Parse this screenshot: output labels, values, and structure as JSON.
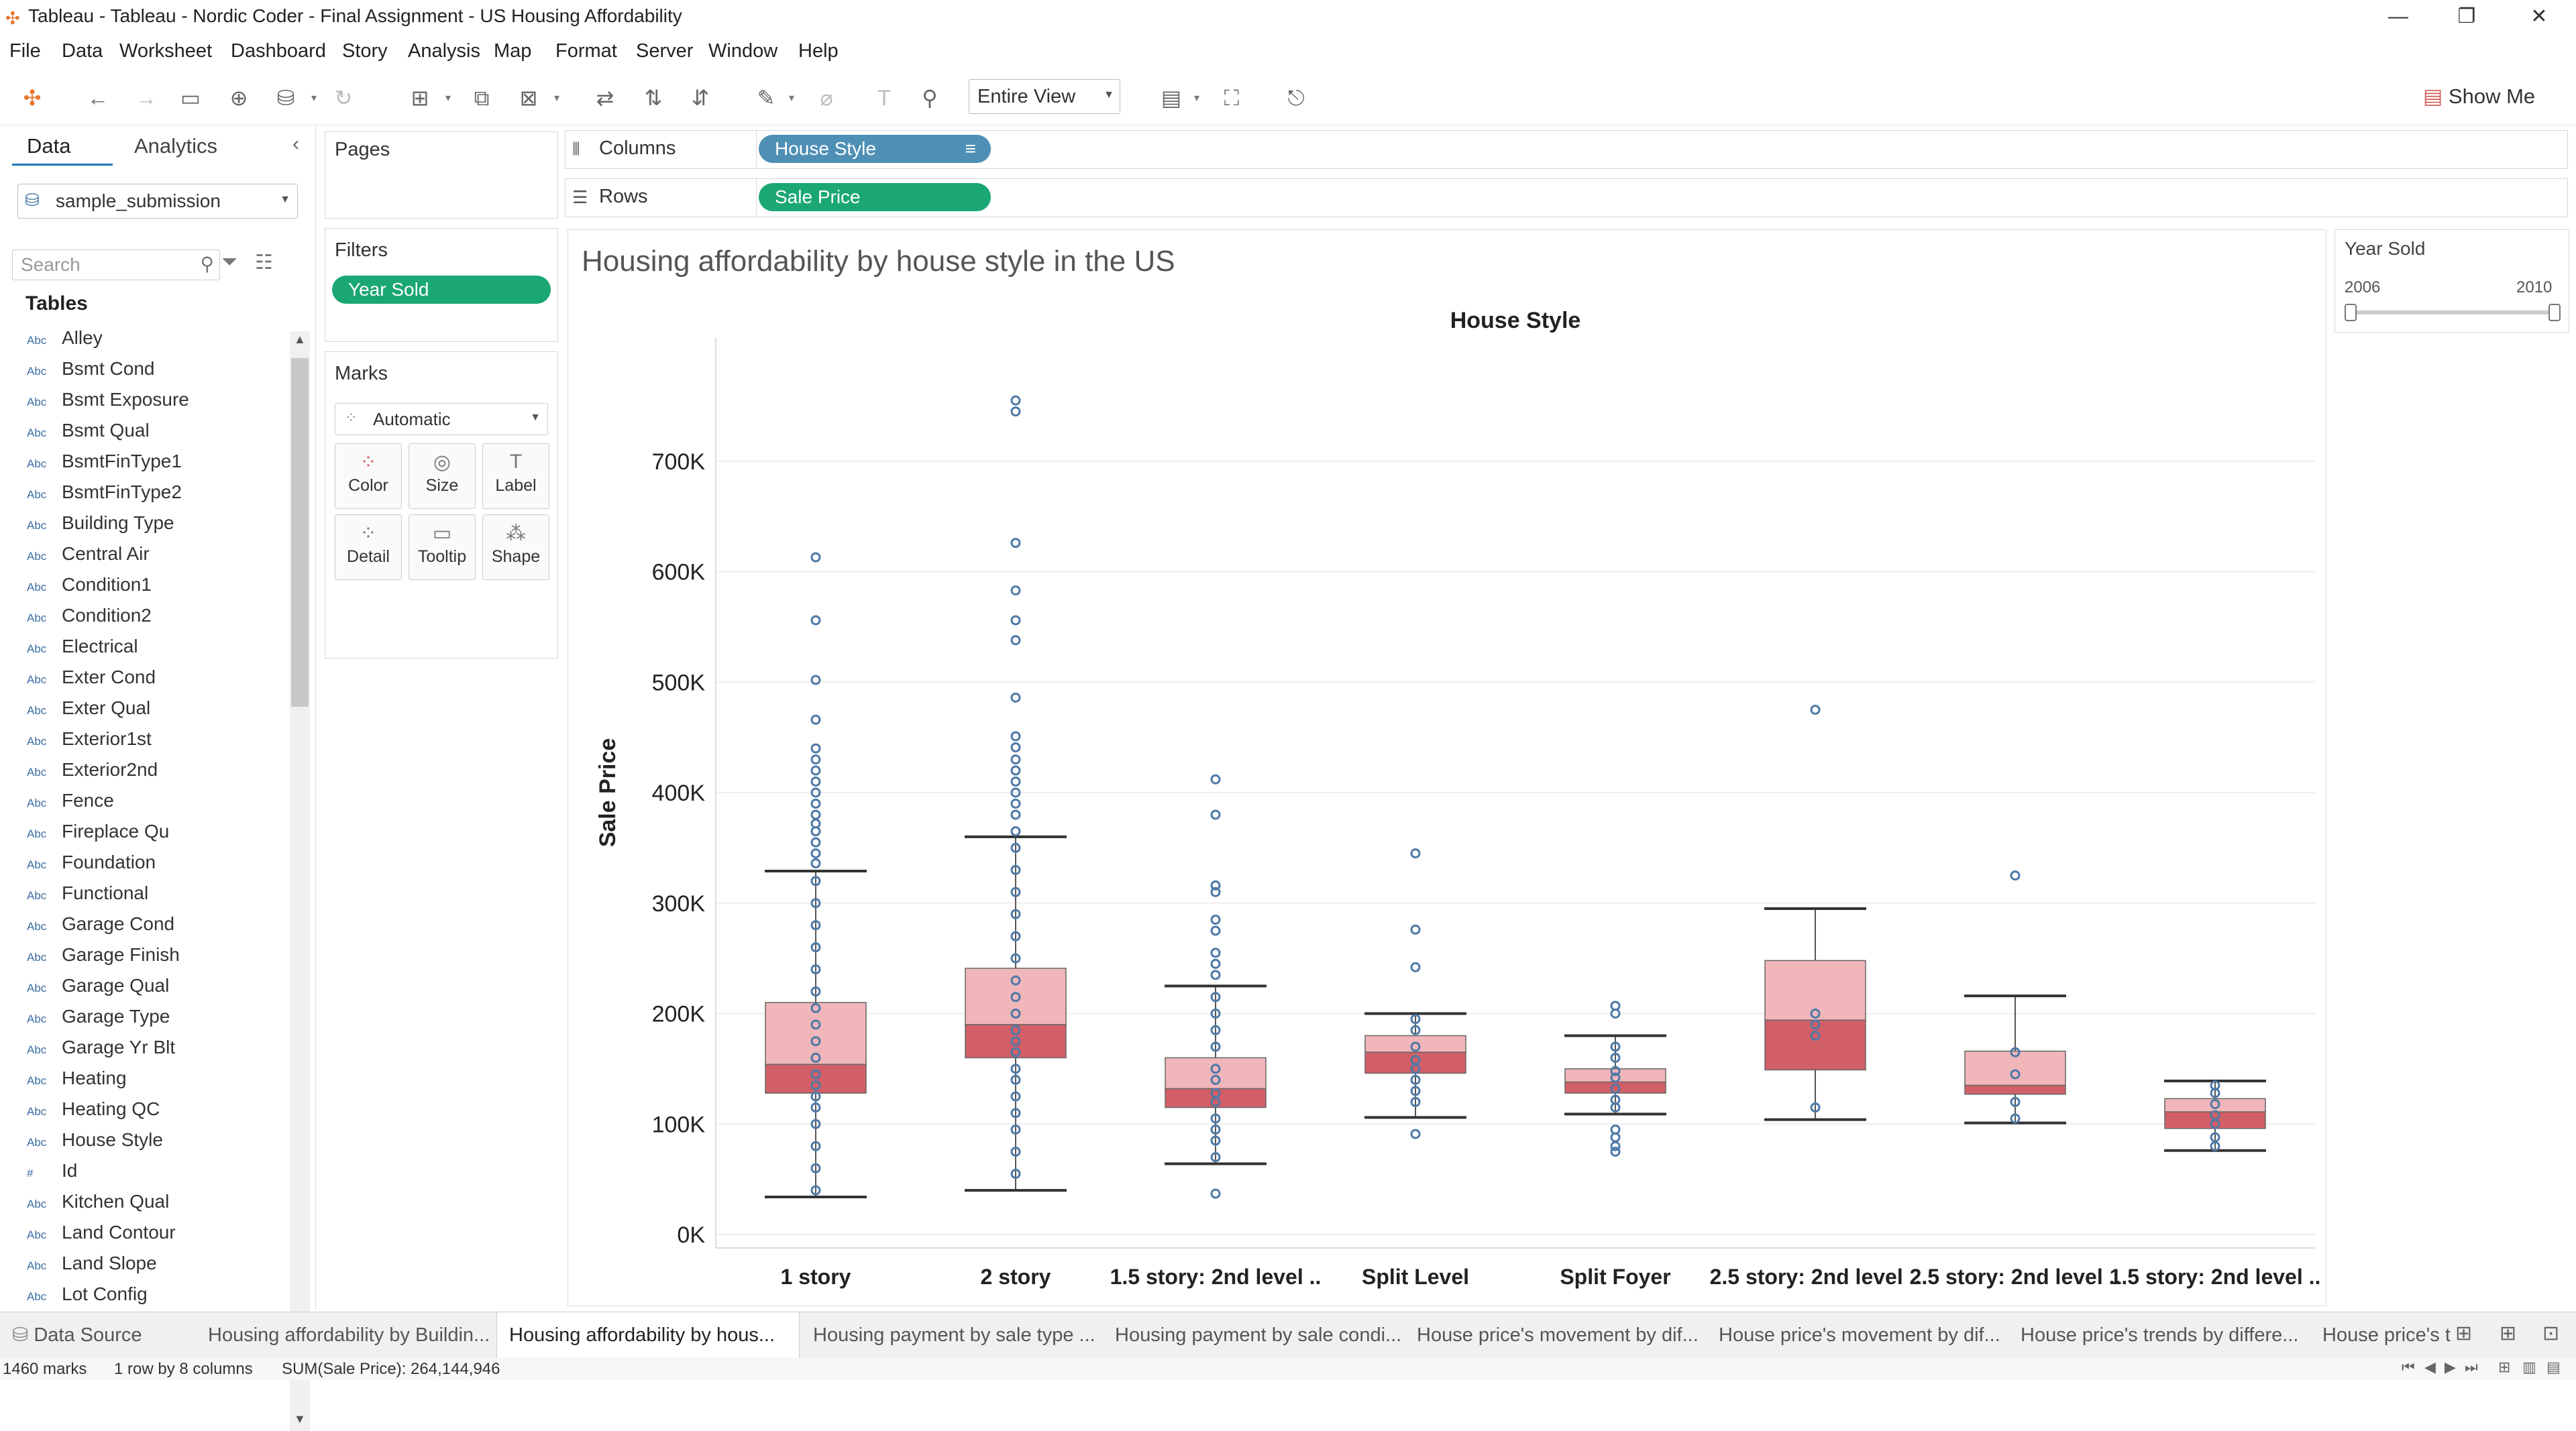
{
  "window": {
    "title": "Tableau - Tableau - Nordic Coder - Final Assignment - US Housing Affordability",
    "minimize": "—",
    "maximize": "❐",
    "close": "✕"
  },
  "menu": [
    "File",
    "Data",
    "Worksheet",
    "Dashboard",
    "Story",
    "Analysis",
    "Map",
    "Format",
    "Server",
    "Window",
    "Help"
  ],
  "toolbar": {
    "view_select": "Entire View",
    "show_me": "Show Me"
  },
  "data_pane": {
    "tab_data": "Data",
    "tab_analytics": "Analytics",
    "datasource": "sample_submission",
    "search_placeholder": "Search",
    "tables_heading": "Tables",
    "fields": [
      {
        "type": "Abc",
        "name": "Alley"
      },
      {
        "type": "Abc",
        "name": "Bsmt Cond"
      },
      {
        "type": "Abc",
        "name": "Bsmt Exposure"
      },
      {
        "type": "Abc",
        "name": "Bsmt Qual"
      },
      {
        "type": "Abc",
        "name": "BsmtFinType1"
      },
      {
        "type": "Abc",
        "name": "BsmtFinType2"
      },
      {
        "type": "Abc",
        "name": "Building Type"
      },
      {
        "type": "Abc",
        "name": "Central Air"
      },
      {
        "type": "Abc",
        "name": "Condition1"
      },
      {
        "type": "Abc",
        "name": "Condition2"
      },
      {
        "type": "Abc",
        "name": "Electrical"
      },
      {
        "type": "Abc",
        "name": "Exter Cond"
      },
      {
        "type": "Abc",
        "name": "Exter Qual"
      },
      {
        "type": "Abc",
        "name": "Exterior1st"
      },
      {
        "type": "Abc",
        "name": "Exterior2nd"
      },
      {
        "type": "Abc",
        "name": "Fence"
      },
      {
        "type": "Abc",
        "name": "Fireplace Qu"
      },
      {
        "type": "Abc",
        "name": "Foundation"
      },
      {
        "type": "Abc",
        "name": "Functional"
      },
      {
        "type": "Abc",
        "name": "Garage Cond"
      },
      {
        "type": "Abc",
        "name": "Garage Finish"
      },
      {
        "type": "Abc",
        "name": "Garage Qual"
      },
      {
        "type": "Abc",
        "name": "Garage Type"
      },
      {
        "type": "Abc",
        "name": "Garage Yr Blt"
      },
      {
        "type": "Abc",
        "name": "Heating"
      },
      {
        "type": "Abc",
        "name": "Heating QC"
      },
      {
        "type": "Abc",
        "name": "House Style"
      },
      {
        "type": "#",
        "name": "Id"
      },
      {
        "type": "Abc",
        "name": "Kitchen Qual"
      },
      {
        "type": "Abc",
        "name": "Land Contour"
      },
      {
        "type": "Abc",
        "name": "Land Slope"
      },
      {
        "type": "Abc",
        "name": "Lot Config"
      }
    ]
  },
  "shelves": {
    "pages_label": "Pages",
    "filters_label": "Filters",
    "filter_pill": "Year Sold",
    "marks_label": "Marks",
    "mark_type": "Automatic",
    "mark_buttons": [
      "Color",
      "Size",
      "Label",
      "Detail",
      "Tooltip",
      "Shape"
    ],
    "columns_label": "Columns",
    "columns_pill": "House Style",
    "rows_label": "Rows",
    "rows_pill": "Sale Price"
  },
  "legend": {
    "title": "Year Sold",
    "min": "2006",
    "max": "2010"
  },
  "sheet": {
    "title": "Housing affordability by house style in the US"
  },
  "colors": {
    "box_upper": "#f0b6ba",
    "box_lower": "#d25f67",
    "points": "#4e79a7",
    "pill_blue": "#4e8fb5",
    "pill_green": "#1aa774"
  },
  "chart_data": {
    "type": "box",
    "title": "House Style",
    "xlabel": "House Style",
    "ylabel": "Sale Price",
    "ylim": [
      0,
      800000
    ],
    "ytick_values": [
      0,
      100000,
      200000,
      300000,
      400000,
      500000,
      600000,
      700000
    ],
    "ytick_labels": [
      "0K",
      "100K",
      "200K",
      "300K",
      "400K",
      "500K",
      "600K",
      "700K"
    ],
    "categories": [
      "1 story",
      "2 story",
      "1.5 story: 2nd level ..",
      "Split Level",
      "Split Foyer",
      "2.5 story: 2nd level ..",
      "2.5 story: 2nd level ..",
      "1.5 story: 2nd level .."
    ],
    "boxes": [
      {
        "whisker_low": 34000,
        "q1": 128000,
        "median": 154000,
        "q3": 210000,
        "whisker_high": 329000,
        "outliers": [
          613000,
          556000,
          502000,
          466000,
          440000,
          430000,
          420000,
          410000,
          400000,
          390000,
          380000,
          372000,
          365000,
          355000,
          345000,
          336000
        ],
        "points": [
          40000,
          60000,
          80000,
          100000,
          115000,
          125000,
          135000,
          145000,
          160000,
          175000,
          190000,
          205000,
          220000,
          240000,
          260000,
          280000,
          300000,
          320000
        ]
      },
      {
        "whisker_low": 40000,
        "q1": 160000,
        "median": 190000,
        "q3": 241000,
        "whisker_high": 360000,
        "outliers": [
          755000,
          745000,
          626000,
          583000,
          556000,
          538000,
          486000,
          451000,
          441000,
          430000,
          420000,
          410000,
          400000,
          390000,
          380000,
          365000
        ],
        "points": [
          55000,
          75000,
          95000,
          110000,
          125000,
          140000,
          150000,
          165000,
          175000,
          185000,
          200000,
          215000,
          230000,
          250000,
          270000,
          290000,
          310000,
          330000,
          350000
        ]
      },
      {
        "whisker_low": 64000,
        "q1": 115000,
        "median": 132000,
        "q3": 160000,
        "whisker_high": 225000,
        "outliers": [
          412000,
          380000,
          316000,
          310000,
          285000,
          275000,
          255000,
          245000,
          235000
        ],
        "points": [
          37000,
          70000,
          85000,
          95000,
          105000,
          120000,
          128000,
          140000,
          150000,
          170000,
          185000,
          200000,
          215000
        ]
      },
      {
        "whisker_low": 106000,
        "q1": 146000,
        "median": 165000,
        "q3": 180000,
        "whisker_high": 200000,
        "outliers": [
          345000,
          276000,
          242000,
          91000
        ],
        "points": [
          120000,
          130000,
          140000,
          150000,
          158000,
          170000,
          185000,
          195000
        ]
      },
      {
        "whisker_low": 109000,
        "q1": 128000,
        "median": 138000,
        "q3": 150000,
        "whisker_high": 180000,
        "outliers": [
          207000,
          200000,
          75000,
          80000,
          88000,
          95000
        ],
        "points": [
          115000,
          122000,
          132000,
          142000,
          148000,
          160000,
          170000
        ]
      },
      {
        "whisker_low": 104000,
        "q1": 149000,
        "median": 194000,
        "q3": 248000,
        "whisker_high": 295000,
        "outliers": [
          475000
        ],
        "points": [
          115000,
          180000,
          190000,
          200000
        ]
      },
      {
        "whisker_low": 101000,
        "q1": 127000,
        "median": 135000,
        "q3": 166000,
        "whisker_high": 216000,
        "outliers": [
          325000
        ],
        "points": [
          105000,
          120000,
          145000,
          165000
        ]
      },
      {
        "whisker_low": 76000,
        "q1": 96000,
        "median": 111000,
        "q3": 123000,
        "whisker_high": 139000,
        "outliers": [],
        "points": [
          80000,
          88000,
          100000,
          108000,
          118000,
          128000,
          135000
        ]
      }
    ]
  },
  "sheet_tabs": {
    "data_source": "Data Source",
    "tabs": [
      "Housing affordability by Buildin...",
      "Housing affordability by hous...",
      "Housing payment by sale type  ...",
      "Housing payment by sale condi...",
      "House price's movement by dif...",
      "House price's movement by dif...",
      "House price's trends by differe...",
      "House price's t"
    ]
  },
  "status": {
    "marks": "1460 marks",
    "rows_cols": "1 row by 8 columns",
    "sum": "SUM(Sale Price): 264,144,946"
  }
}
